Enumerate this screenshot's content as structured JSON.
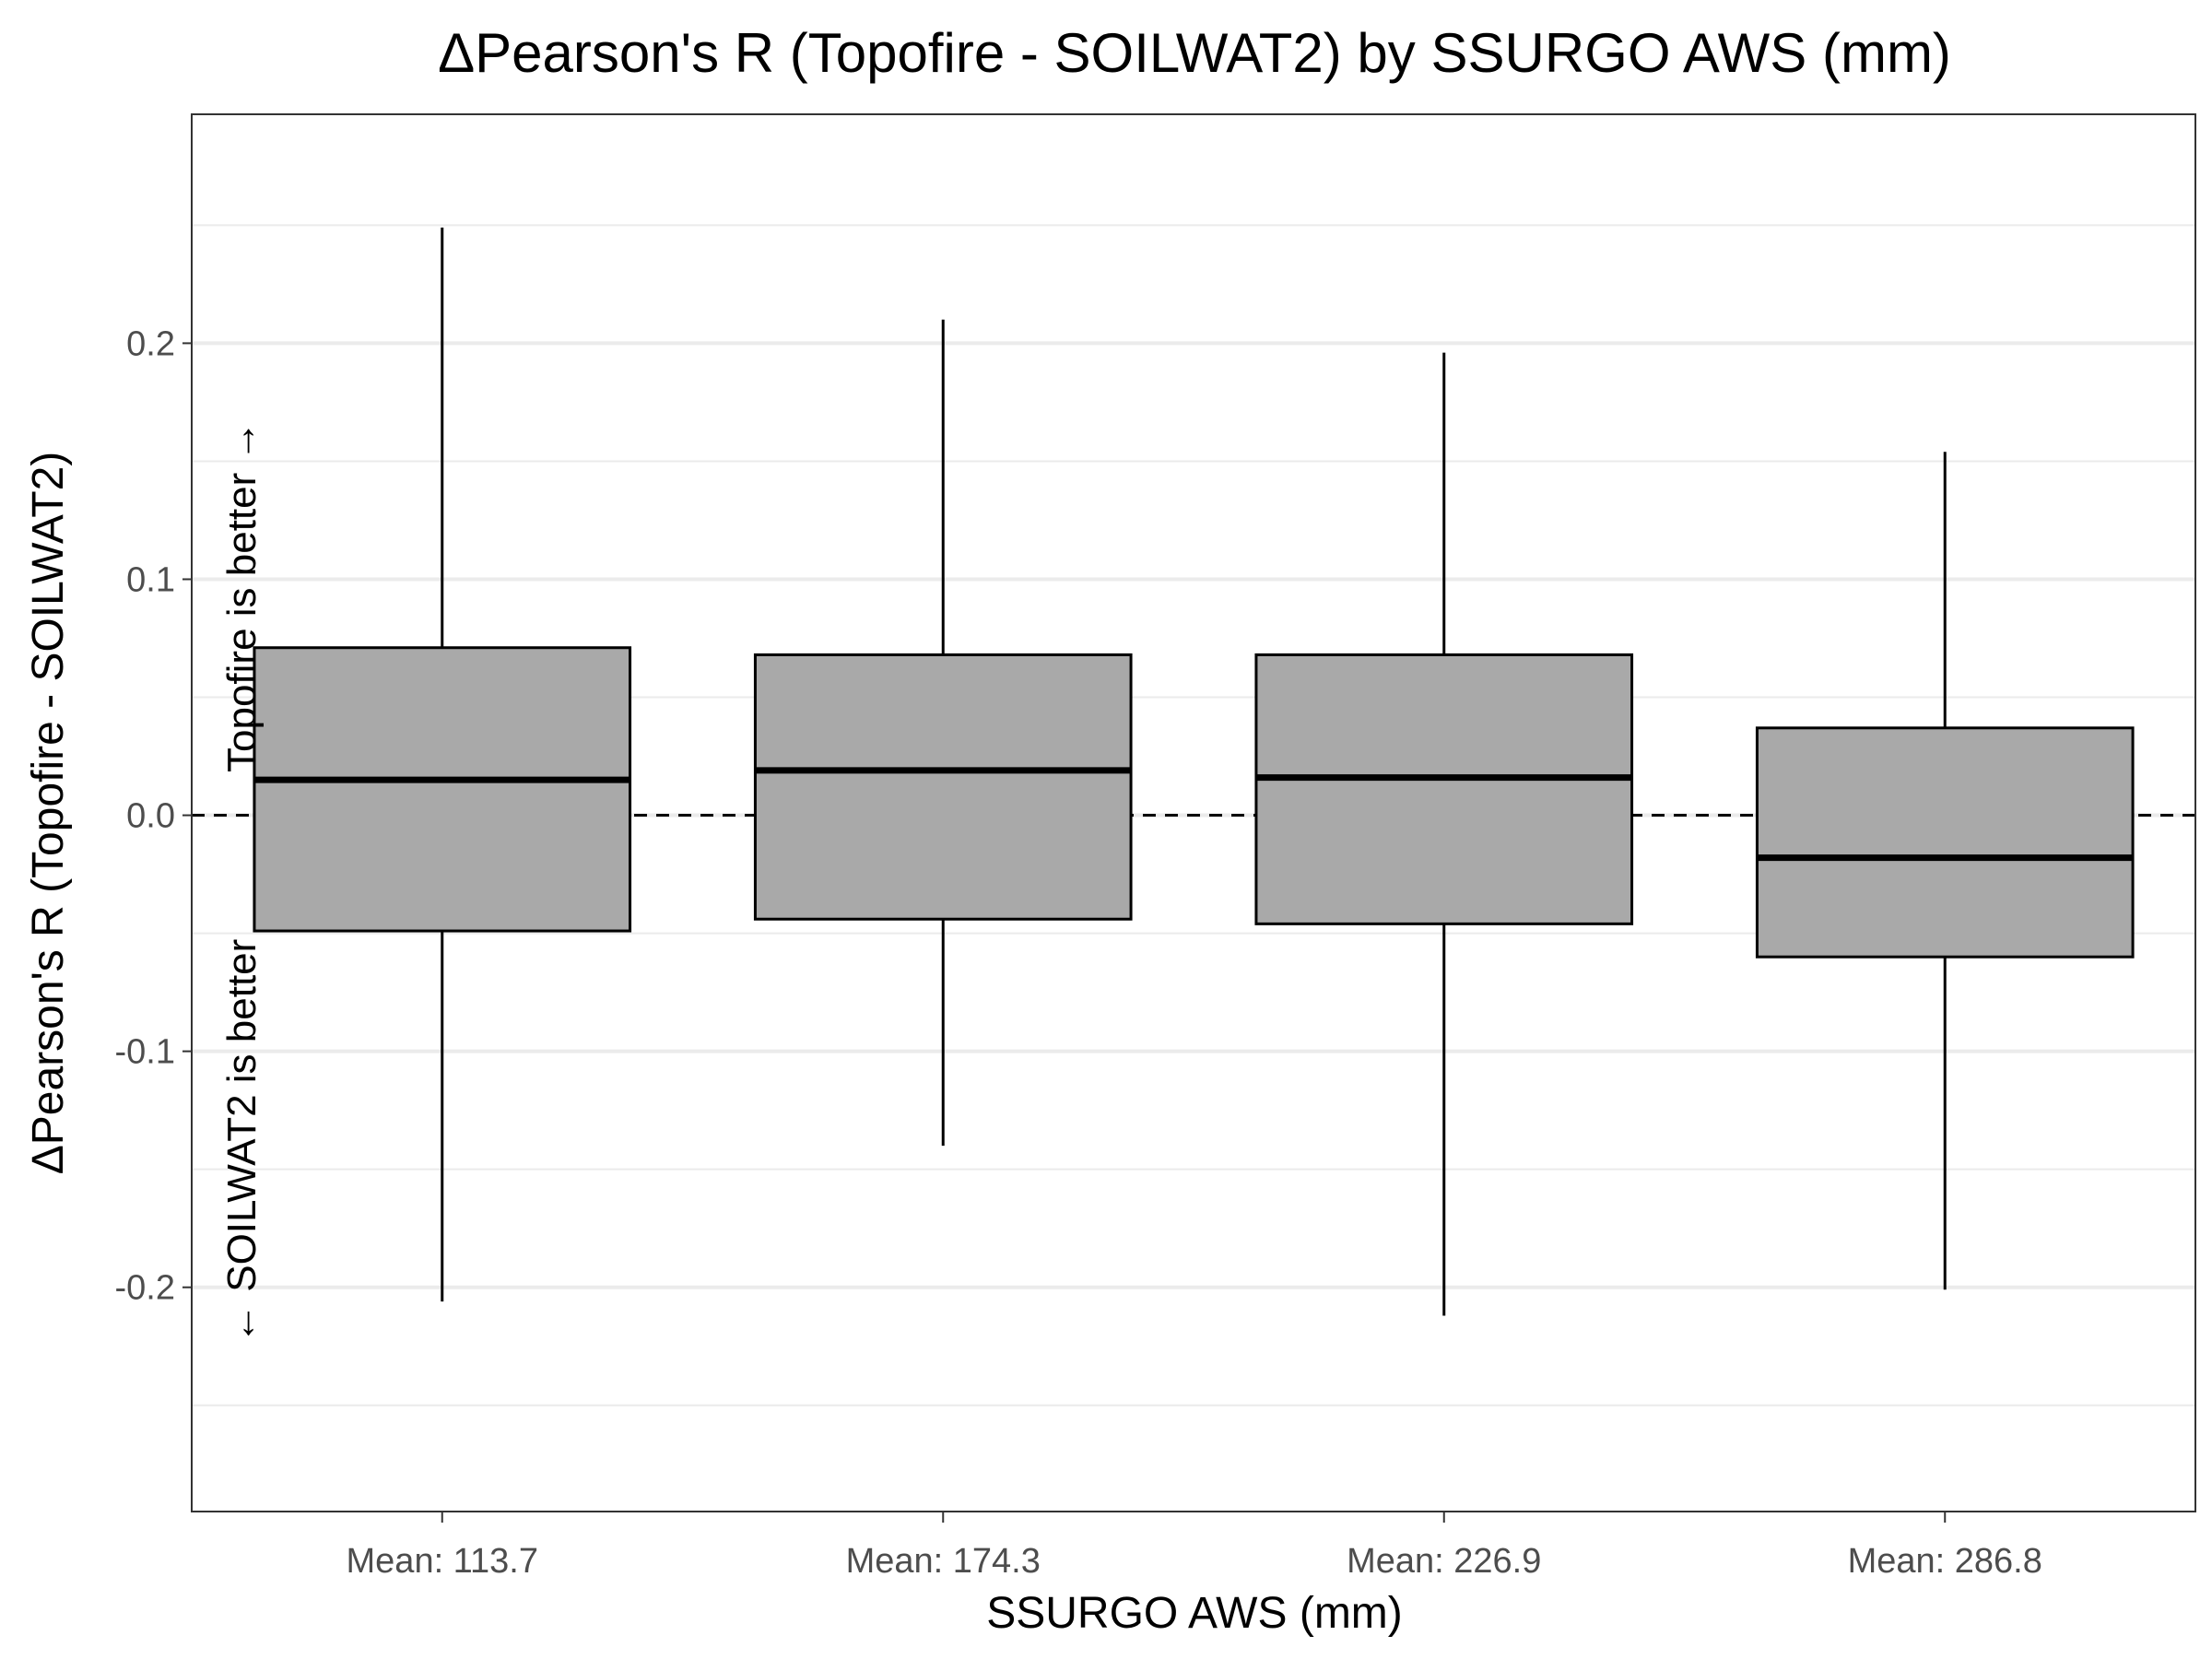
{
  "chart_data": {
    "type": "boxplot",
    "title": "ΔPearson's R (Topofire - SOILWAT2) by SSURGO AWS (mm)",
    "xlabel": "SSURGO AWS (mm)",
    "ylabel": "ΔPearson's R (Topofire - SOILWAT2)",
    "ylim": [
      -0.295,
      0.297
    ],
    "yticks": [
      -0.2,
      -0.1,
      0.0,
      0.1,
      0.2
    ],
    "ytick_labels": [
      "-0.2",
      "-0.1",
      "0.0",
      "0.1",
      "0.2"
    ],
    "categories": [
      "Mean: 113.7",
      "Mean: 174.3",
      "Mean: 226.9",
      "Mean: 286.8"
    ],
    "boxes": [
      {
        "category": "Mean: 113.7",
        "whisker_low": -0.206,
        "q1": -0.049,
        "median": 0.015,
        "q3": 0.071,
        "whisker_high": 0.249
      },
      {
        "category": "Mean: 174.3",
        "whisker_low": -0.14,
        "q1": -0.044,
        "median": 0.019,
        "q3": 0.068,
        "whisker_high": 0.21
      },
      {
        "category": "Mean: 226.9",
        "whisker_low": -0.212,
        "q1": -0.046,
        "median": 0.016,
        "q3": 0.068,
        "whisker_high": 0.196
      },
      {
        "category": "Mean: 286.8",
        "whisker_low": -0.201,
        "q1": -0.06,
        "median": -0.018,
        "q3": 0.037,
        "whisker_high": 0.154
      }
    ],
    "reference_line": {
      "y": 0.0,
      "style": "dashed"
    },
    "annotations": {
      "upper": "Topofire is better →",
      "lower": "← SOILWAT2 is better"
    },
    "grid": true,
    "box_fill": "#a9a9a9",
    "theme": "bw"
  }
}
